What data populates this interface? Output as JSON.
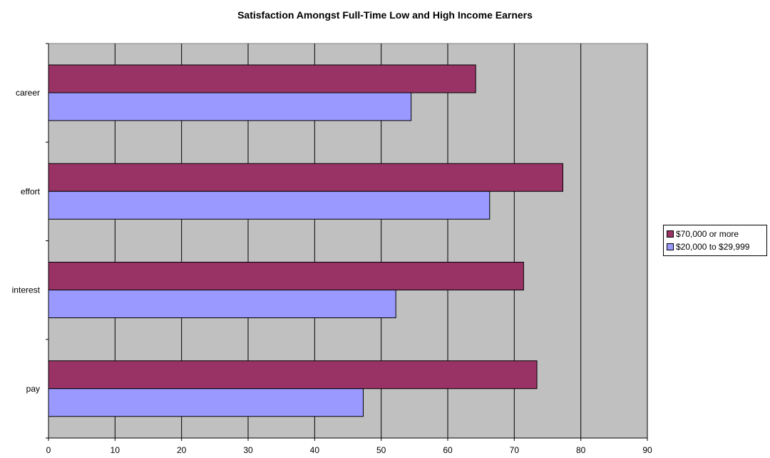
{
  "chart_data": {
    "type": "bar",
    "orientation": "horizontal",
    "title": "Satisfaction Amongst Full-Time Low and High Income Earners",
    "xlabel": "",
    "ylabel": "",
    "categories": [
      "career",
      "effort",
      "interest",
      "pay"
    ],
    "series": [
      {
        "name": "$70,000 or more",
        "color": "#993366",
        "values": [
          64.2,
          77.3,
          71.4,
          73.4
        ]
      },
      {
        "name": "$20,000 to $29,999",
        "color": "#9999ff",
        "values": [
          54.5,
          66.3,
          52.2,
          47.3
        ]
      }
    ],
    "xlim": [
      0,
      90
    ],
    "xticks": [
      0,
      10,
      20,
      30,
      40,
      50,
      60,
      70,
      80,
      90
    ],
    "grid": true,
    "plot_background": "#c0c0c0",
    "legend_position": "right"
  }
}
